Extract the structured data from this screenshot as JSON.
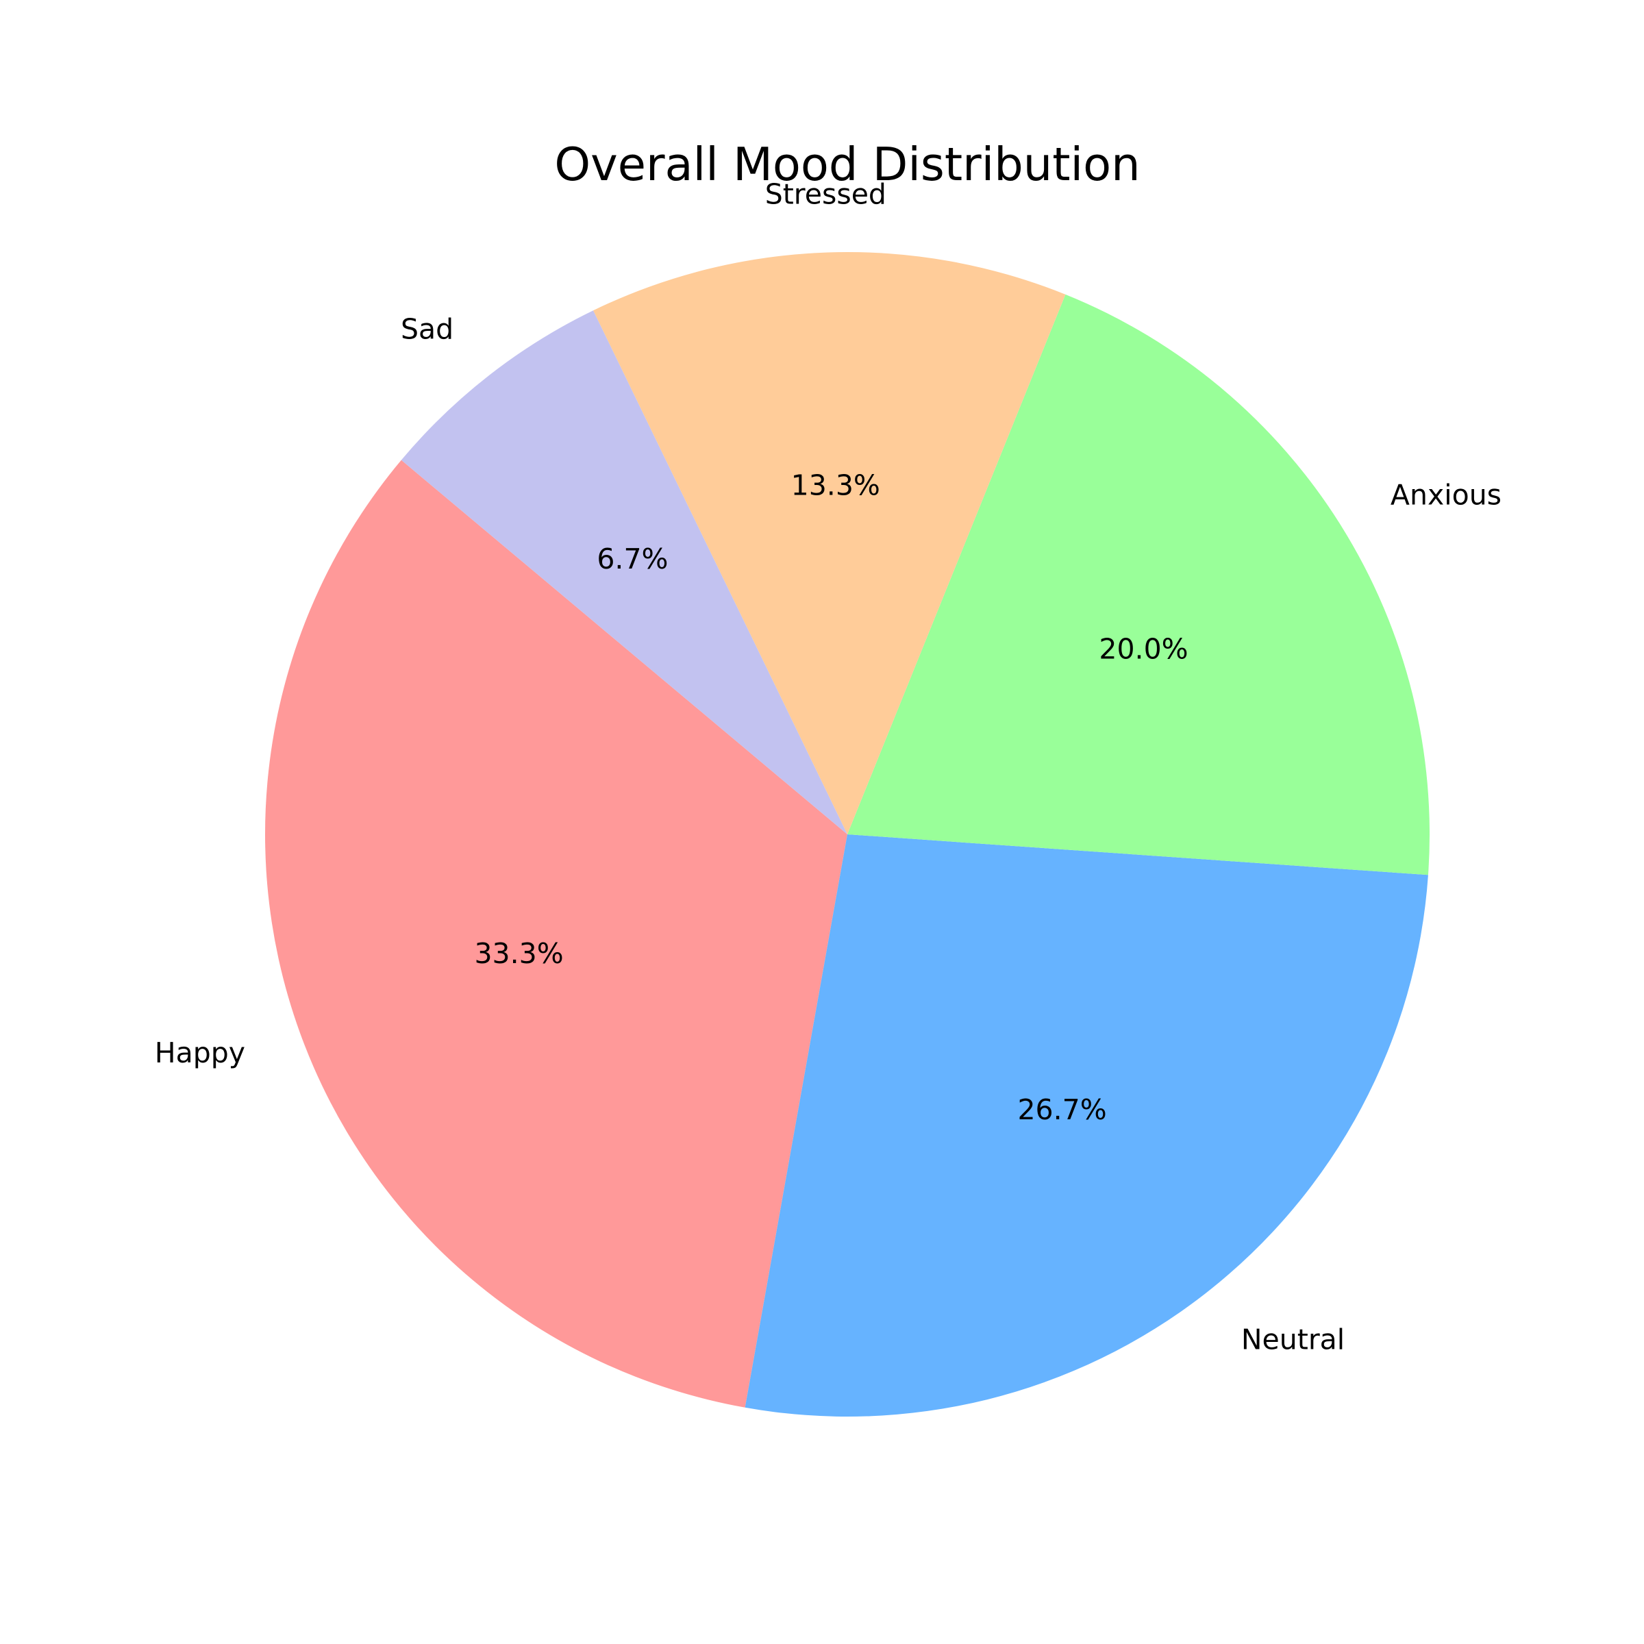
{
  "chart_data": {
    "type": "pie",
    "title": "Overall Mood Distribution",
    "start_angle_deg": 140,
    "direction": "counterclockwise",
    "slices": [
      {
        "label": "Happy",
        "value": 33.3,
        "pct_label": "33.3%",
        "color": "#ff9999"
      },
      {
        "label": "Neutral",
        "value": 26.7,
        "pct_label": "26.7%",
        "color": "#66b3ff"
      },
      {
        "label": "Anxious",
        "value": 20.0,
        "pct_label": "20.0%",
        "color": "#99ff99"
      },
      {
        "label": "Stressed",
        "value": 13.3,
        "pct_label": "13.3%",
        "color": "#ffcc99"
      },
      {
        "label": "Sad",
        "value": 6.7,
        "pct_label": "6.7%",
        "color": "#c2c2f0"
      }
    ]
  }
}
